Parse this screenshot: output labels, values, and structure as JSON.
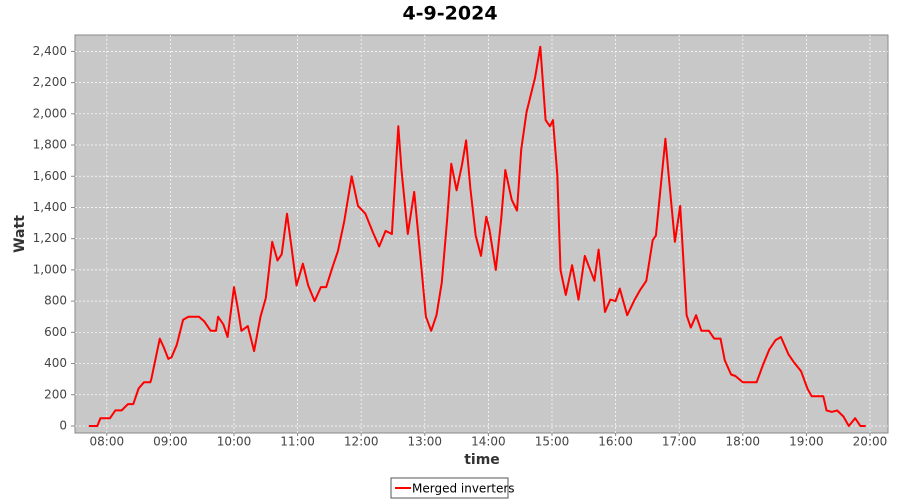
{
  "chart_data": {
    "type": "line",
    "title": "4-9-2024",
    "x_label": "time",
    "y_label": "Watt",
    "x": [
      "07:43",
      "07:51",
      "07:54",
      "07:57",
      "08:03",
      "08:08",
      "08:14",
      "08:20",
      "08:25",
      "08:30",
      "08:35",
      "08:41",
      "08:42",
      "08:50",
      "08:54",
      "08:58",
      "09:01",
      "09:06",
      "09:12",
      "09:17",
      "09:27",
      "09:32",
      "09:38",
      "09:43",
      "09:45",
      "09:50",
      "09:54",
      "10:00",
      "10:04",
      "10:07",
      "10:13",
      "10:19",
      "10:25",
      "10:30",
      "10:36",
      "10:41",
      "10:45",
      "10:50",
      "10:54",
      "10:59",
      "11:05",
      "11:10",
      "11:16",
      "11:22",
      "11:27",
      "11:33",
      "11:38",
      "11:44",
      "11:51",
      "11:57",
      "12:04",
      "12:11",
      "12:17",
      "12:23",
      "12:29",
      "12:35",
      "12:38",
      "12:44",
      "12:50",
      "12:54",
      "12:57",
      "13:01",
      "13:06",
      "13:11",
      "13:16",
      "13:21",
      "13:25",
      "13:30",
      "13:35",
      "13:39",
      "13:43",
      "13:48",
      "13:53",
      "13:58",
      "14:01",
      "14:07",
      "14:12",
      "14:16",
      "14:22",
      "14:27",
      "14:31",
      "14:36",
      "14:44",
      "14:49",
      "14:54",
      "14:58",
      "15:01",
      "15:05",
      "15:08",
      "15:13",
      "15:19",
      "15:25",
      "15:31",
      "15:40",
      "15:44",
      "15:50",
      "15:55",
      "16:00",
      "16:04",
      "16:11",
      "16:18",
      "16:23",
      "16:29",
      "16:35",
      "16:38",
      "16:47",
      "16:50",
      "16:56",
      "17:01",
      "17:07",
      "17:11",
      "17:16",
      "17:21",
      "17:28",
      "17:33",
      "17:39",
      "17:43",
      "17:49",
      "17:53",
      "18:00",
      "18:08",
      "18:13",
      "18:19",
      "18:25",
      "18:31",
      "18:36",
      "18:43",
      "18:48",
      "18:55",
      "19:01",
      "19:05",
      "19:10",
      "19:16",
      "19:19",
      "19:24",
      "19:29",
      "19:35",
      "19:40",
      "19:46",
      "19:51",
      "19:56"
    ],
    "series": [
      {
        "name": "Merged inverters",
        "color": "#ff0000",
        "values": [
          0,
          0,
          50,
          50,
          50,
          100,
          100,
          140,
          140,
          240,
          280,
          280,
          300,
          560,
          500,
          430,
          440,
          520,
          680,
          700,
          700,
          670,
          610,
          610,
          700,
          650,
          570,
          890,
          740,
          610,
          640,
          480,
          700,
          820,
          1180,
          1060,
          1100,
          1360,
          1160,
          900,
          1040,
          900,
          800,
          890,
          890,
          1020,
          1120,
          1310,
          1600,
          1410,
          1360,
          1240,
          1150,
          1250,
          1230,
          1920,
          1640,
          1230,
          1500,
          1220,
          1000,
          700,
          610,
          710,
          920,
          1320,
          1680,
          1510,
          1670,
          1830,
          1520,
          1220,
          1090,
          1340,
          1260,
          1000,
          1320,
          1640,
          1450,
          1380,
          1770,
          2010,
          2230,
          2430,
          1960,
          1920,
          1960,
          1610,
          1000,
          840,
          1030,
          810,
          1090,
          930,
          1130,
          730,
          810,
          800,
          880,
          710,
          810,
          870,
          930,
          1190,
          1220,
          1840,
          1610,
          1180,
          1410,
          710,
          630,
          710,
          610,
          610,
          560,
          560,
          420,
          330,
          320,
          280,
          280,
          280,
          390,
          490,
          550,
          570,
          460,
          410,
          350,
          240,
          190,
          190,
          190,
          100,
          90,
          100,
          60,
          0,
          50,
          0,
          0
        ]
      }
    ],
    "xlim": [
      "07:30",
      "20:17"
    ],
    "xticks": [
      "08:00",
      "09:00",
      "10:00",
      "11:00",
      "12:00",
      "13:00",
      "14:00",
      "15:00",
      "16:00",
      "17:00",
      "18:00",
      "19:00",
      "20:00"
    ],
    "ylim": [
      -45,
      2505
    ],
    "yticks": [
      0,
      200,
      400,
      600,
      800,
      {
        "value": 1000,
        "label": "1,000"
      },
      {
        "value": 1200,
        "label": "1,200"
      },
      {
        "value": 1400,
        "label": "1,400"
      },
      {
        "value": 1600,
        "label": "1,600"
      },
      {
        "value": 1800,
        "label": "1,800"
      },
      {
        "value": 2000,
        "label": "2,000"
      },
      {
        "value": 2200,
        "label": "2,200"
      },
      {
        "value": 2400,
        "label": "2,400"
      }
    ],
    "grid": true
  }
}
